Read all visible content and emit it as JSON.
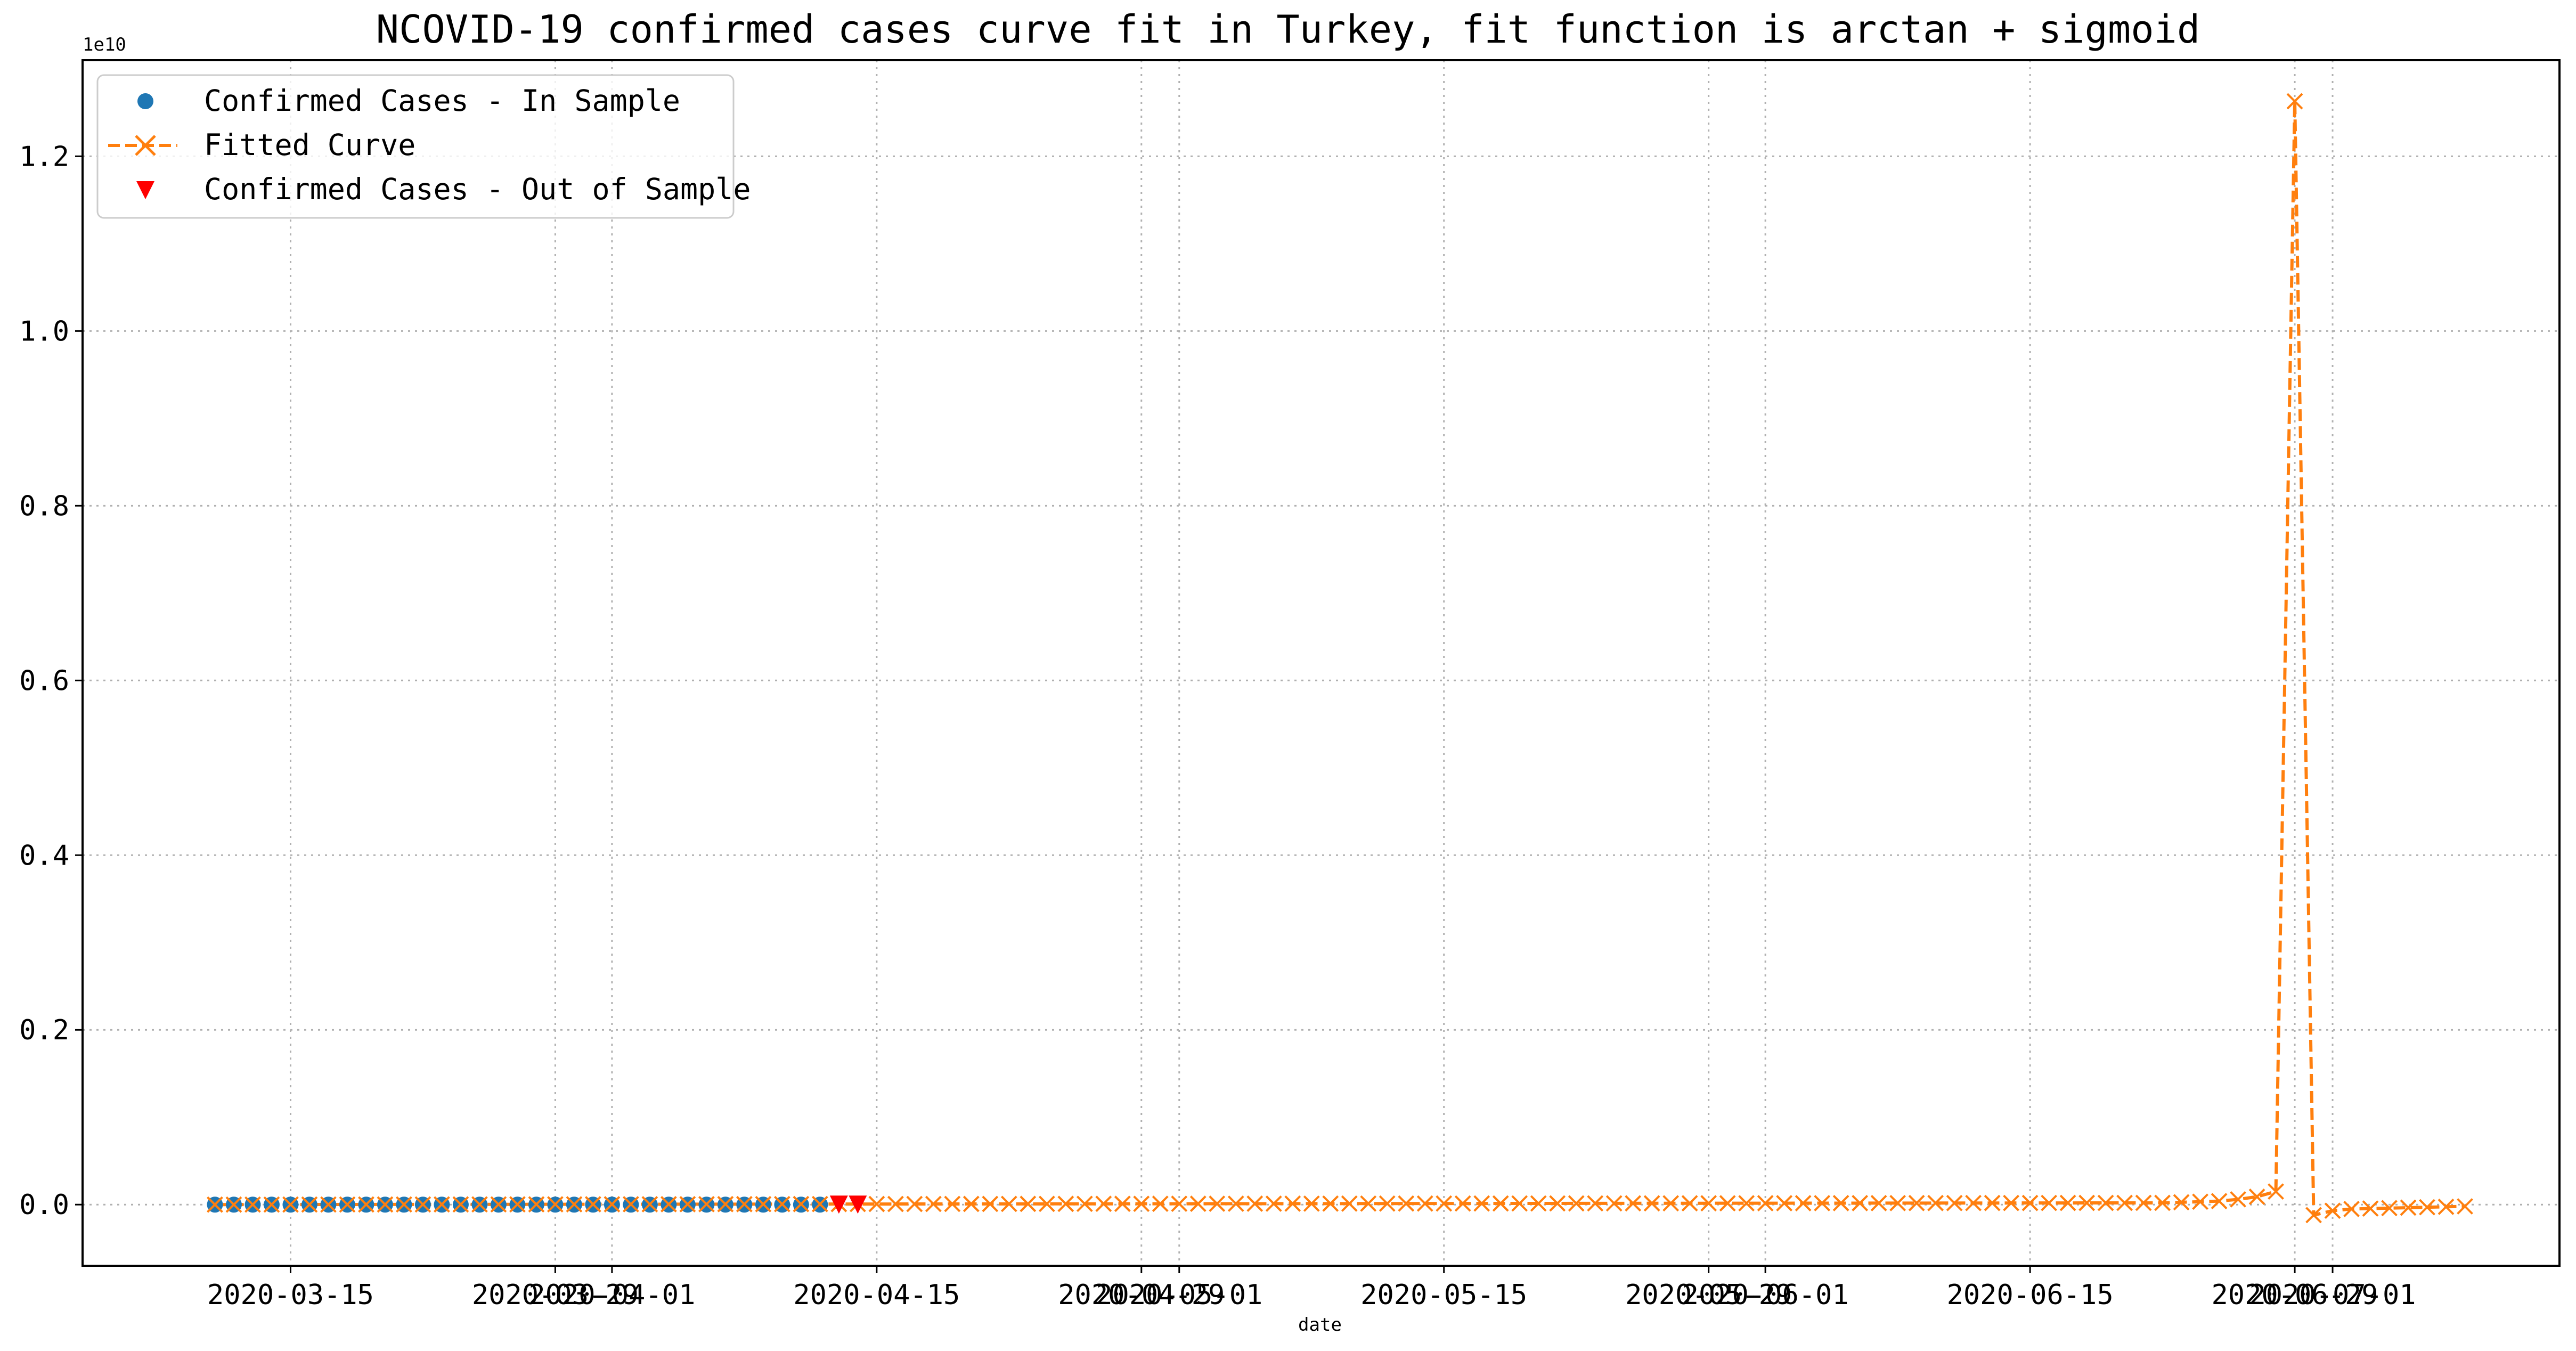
{
  "chart_data": {
    "type": "line",
    "title": "NCOVID-19 confirmed cases curve fit in Turkey, fit function is arctan + sigmoid",
    "xlabel": "date",
    "ylabel": "",
    "y_offset_text": "1e10",
    "y_scale": 10000000000,
    "xlim": [
      "2020-03-04",
      "2020-07-13"
    ],
    "ylim": [
      -0.07,
      1.31
    ],
    "grid": true,
    "legend_position": "top-left",
    "x_ticks": [
      "2020-03-15",
      "2020-03-29",
      "2020-04-01",
      "2020-04-15",
      "2020-04-29",
      "2020-05-01",
      "2020-05-15",
      "2020-05-29",
      "2020-06-01",
      "2020-06-15",
      "2020-06-29",
      "2020-07-01"
    ],
    "y_ticks": [
      "0.0",
      "0.2",
      "0.4",
      "0.6",
      "0.8",
      "1.0",
      "1.2"
    ],
    "legend": [
      "Confirmed Cases - In Sample",
      "Fitted Curve",
      "Confirmed Cases - Out of Sample"
    ],
    "colors": {
      "in_sample": "#1f77b4",
      "fitted": "#ff7f0e",
      "out_sample": "#ff0000",
      "axis": "#000000"
    },
    "series": [
      {
        "name": "Confirmed Cases - In Sample",
        "marker": "circle",
        "x_start": "2020-03-11",
        "x_end": "2020-04-12",
        "values_note": "",
        "y": 0
      },
      {
        "name": "Fitted Curve",
        "marker": "x",
        "line": "dashed",
        "x_start": "2020-03-11",
        "x_end": "2020-07-08",
        "points": [
          [
            "2020-03-11",
            0
          ],
          [
            "2020-06-22",
            0.002
          ],
          [
            "2020-06-25",
            0.004
          ],
          [
            "2020-06-26",
            0.006
          ],
          [
            "2020-06-27",
            0.009
          ],
          [
            "2020-06-28",
            0.015
          ],
          [
            "2020-06-29",
            1.263
          ],
          [
            "2020-06-30",
            -0.012
          ],
          [
            "2020-07-01",
            -0.007
          ],
          [
            "2020-07-02",
            -0.005
          ],
          [
            "2020-07-08",
            -0.002
          ]
        ]
      },
      {
        "name": "Confirmed Cases - Out of Sample",
        "marker": "triangle-down",
        "points": [
          [
            "2020-04-13",
            0
          ],
          [
            "2020-04-14",
            0
          ]
        ]
      }
    ]
  }
}
